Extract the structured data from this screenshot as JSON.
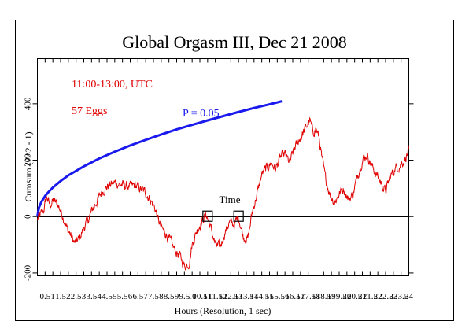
{
  "chart_data": {
    "type": "line",
    "title": "Global Orgasm III, Dec 21 2008",
    "xlabel": "Hours (Resolution, 1 sec)",
    "ylabel": "Cumsum (Z^2 - 1)",
    "xlim": [
      0,
      24
    ],
    "ylim": [
      -210,
      560
    ],
    "x_tick_labels": [
      "0.5",
      "1",
      "1.5",
      "2",
      "2.5",
      "3",
      "3.5",
      "4",
      "4.5",
      "5",
      "5.5",
      "6",
      "6.5",
      "7",
      "7.5",
      "8",
      "8.5",
      "9",
      "9.5",
      "10",
      "10.5",
      "11",
      "11.5",
      "12",
      "12.5",
      "13",
      "13.5",
      "14",
      "14.5",
      "15",
      "15.5",
      "16",
      "16.5",
      "17",
      "17.5",
      "18",
      "18.5",
      "19",
      "19.5",
      "20",
      "20.5",
      "21",
      "21.5",
      "22",
      "22.5",
      "23",
      "23.5",
      "24"
    ],
    "y_ticks": [
      -200,
      0,
      200,
      400
    ],
    "annotations": {
      "time_window": "11:00-13:00, UTC",
      "eggs": "57 Eggs",
      "p_label": "P = 0.05",
      "time_marker": "Time"
    },
    "time_markers_x": [
      11,
      13
    ],
    "series": [
      {
        "color": "#e00000",
        "x": [
          0,
          0.2,
          0.4,
          0.6,
          0.8,
          1.0,
          1.3,
          1.6,
          1.9,
          2.1,
          2.4,
          2.7,
          3.0,
          3.3,
          3.6,
          3.9,
          4.2,
          4.6,
          5.0,
          5.3,
          5.6,
          6.0,
          6.3,
          6.6,
          7.0,
          7.3,
          7.6,
          7.8,
          8.0,
          8.3,
          8.6,
          8.9,
          9.2,
          9.5,
          9.8,
          10.0,
          10.3,
          10.6,
          10.9,
          11.2,
          11.5,
          11.8,
          12.1,
          12.4,
          12.7,
          13.0,
          13.3,
          13.6,
          13.9,
          14.2,
          14.5,
          14.8,
          15.1,
          15.4,
          15.7,
          16.0,
          16.3,
          16.6,
          16.9,
          17.2,
          17.4,
          17.6,
          17.8,
          18.0,
          18.2,
          18.4,
          18.6,
          18.9,
          19.2,
          19.5,
          19.8,
          20.1,
          20.4,
          20.7,
          21.0,
          21.3,
          21.6,
          21.9,
          22.2,
          22.5,
          22.8,
          23.1,
          23.4,
          23.7,
          24.0
        ],
        "values": [
          -10,
          5,
          20,
          70,
          40,
          55,
          45,
          10,
          -40,
          -60,
          -95,
          -80,
          -40,
          -10,
          30,
          60,
          90,
          110,
          120,
          115,
          110,
          105,
          110,
          100,
          85,
          60,
          30,
          -10,
          -40,
          -60,
          -90,
          -120,
          -140,
          -175,
          -165,
          -100,
          -50,
          -20,
          10,
          -40,
          -100,
          -110,
          -60,
          -20,
          -30,
          0,
          -70,
          -80,
          20,
          80,
          150,
          170,
          190,
          170,
          210,
          220,
          190,
          240,
          270,
          300,
          320,
          340,
          300,
          310,
          280,
          200,
          140,
          80,
          50,
          80,
          100,
          60,
          80,
          150,
          200,
          220,
          180,
          150,
          120,
          90,
          140,
          170,
          180,
          200,
          230
        ]
      },
      {
        "name": "P = 0.05",
        "color": "#1a1aee",
        "x": [
          0.0,
          0.1,
          0.25,
          0.5,
          0.75,
          1,
          1.5,
          2,
          3,
          4,
          5,
          6,
          7,
          8,
          9,
          10,
          11,
          12,
          13,
          14,
          15,
          15.8
        ],
        "values": [
          0,
          32,
          51,
          73,
          89,
          103,
          126,
          146,
          178,
          206,
          230,
          252,
          272,
          291,
          309,
          325,
          341,
          356,
          371,
          385,
          398,
          409
        ]
      }
    ]
  }
}
